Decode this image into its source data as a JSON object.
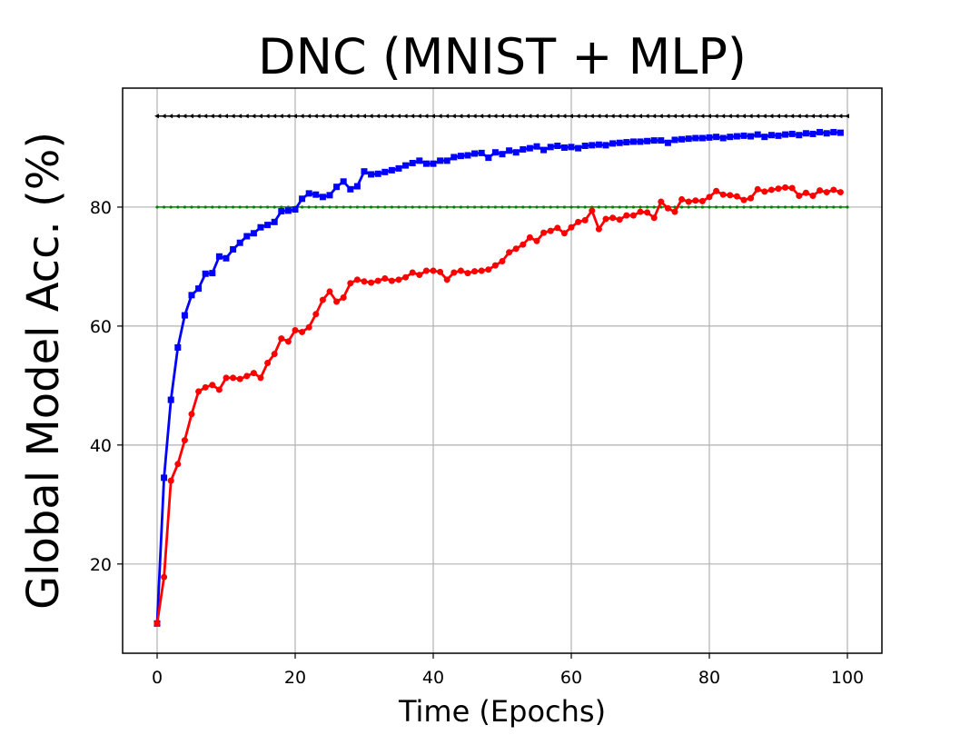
{
  "chart_data": {
    "type": "line",
    "title": "DNC (MNIST + MLP)",
    "xlabel": "Time (Epochs)",
    "ylabel": "Global Model Acc. (%)",
    "xlim": [
      -5,
      105
    ],
    "ylim": [
      5,
      100
    ],
    "xticks": [
      0,
      20,
      40,
      60,
      80,
      100
    ],
    "yticks": [
      20,
      40,
      60,
      80
    ],
    "grid": true,
    "legend": "none",
    "series": [
      {
        "color": "#000000",
        "marker": "triangle-left",
        "x": [
          0,
          100
        ],
        "values": [
          95.3,
          95.3
        ]
      },
      {
        "color": "#008000",
        "marker": "small-dot",
        "x": [
          0,
          100
        ],
        "values": [
          80,
          80
        ]
      },
      {
        "color": "#0000ff",
        "marker": "square",
        "x": [
          0,
          1,
          2,
          3,
          4,
          5,
          6,
          7,
          8,
          9,
          10,
          11,
          12,
          13,
          14,
          15,
          16,
          17,
          18,
          19,
          20,
          21,
          22,
          23,
          24,
          25,
          26,
          27,
          28,
          29,
          30,
          31,
          32,
          33,
          34,
          35,
          36,
          37,
          38,
          39,
          40,
          41,
          42,
          43,
          44,
          45,
          46,
          47,
          48,
          49,
          50,
          51,
          52,
          53,
          54,
          55,
          56,
          57,
          58,
          59,
          60,
          61,
          62,
          63,
          64,
          65,
          66,
          67,
          68,
          69,
          70,
          71,
          72,
          73,
          74,
          75,
          76,
          77,
          78,
          79,
          80,
          81,
          82,
          83,
          84,
          85,
          86,
          87,
          88,
          89,
          90,
          91,
          92,
          93,
          94,
          95,
          96,
          97,
          98,
          99
        ],
        "values": [
          10,
          34.5,
          47.6,
          56.4,
          61.8,
          65.2,
          66.3,
          68.8,
          68.9,
          71.7,
          71.4,
          72.9,
          74.0,
          75.1,
          75.6,
          76.6,
          77.0,
          77.5,
          79.3,
          79.4,
          79.6,
          81.4,
          82.3,
          82.1,
          81.7,
          82.0,
          83.4,
          84.3,
          83.0,
          83.5,
          86.0,
          85.5,
          85.6,
          85.9,
          86.2,
          86.5,
          87.0,
          87.4,
          87.8,
          87.3,
          87.3,
          87.8,
          87.8,
          88.4,
          88.6,
          88.7,
          89.0,
          89.1,
          88.3,
          89.2,
          88.9,
          89.5,
          89.2,
          89.7,
          89.9,
          90.2,
          89.6,
          90.1,
          90.3,
          90.0,
          90.1,
          89.9,
          90.3,
          90.4,
          90.5,
          90.4,
          90.7,
          90.8,
          90.9,
          91.0,
          91.0,
          91.1,
          91.2,
          91.2,
          90.8,
          91.3,
          91.4,
          91.5,
          91.6,
          91.6,
          91.7,
          91.8,
          91.6,
          91.8,
          91.9,
          92.0,
          91.9,
          92.2,
          91.8,
          92.1,
          92.0,
          92.2,
          92.3,
          92.1,
          92.4,
          92.3,
          92.6,
          92.4,
          92.6,
          92.5
        ]
      },
      {
        "color": "#ff0000",
        "marker": "circle",
        "x": [
          0,
          1,
          2,
          3,
          4,
          5,
          6,
          7,
          8,
          9,
          10,
          11,
          12,
          13,
          14,
          15,
          16,
          17,
          18,
          19,
          20,
          21,
          22,
          23,
          24,
          25,
          26,
          27,
          28,
          29,
          30,
          31,
          32,
          33,
          34,
          35,
          36,
          37,
          38,
          39,
          40,
          41,
          42,
          43,
          44,
          45,
          46,
          47,
          48,
          49,
          50,
          51,
          52,
          53,
          54,
          55,
          56,
          57,
          58,
          59,
          60,
          61,
          62,
          63,
          64,
          65,
          66,
          67,
          68,
          69,
          70,
          71,
          72,
          73,
          74,
          75,
          76,
          77,
          78,
          79,
          80,
          81,
          82,
          83,
          84,
          85,
          86,
          87,
          88,
          89,
          90,
          91,
          92,
          93,
          94,
          95,
          96,
          97,
          98,
          99
        ],
        "values": [
          10,
          17.8,
          34.0,
          36.8,
          40.8,
          45.2,
          49.0,
          49.7,
          50.1,
          49.3,
          51.3,
          51.3,
          51.1,
          51.6,
          52.1,
          51.3,
          53.8,
          55.3,
          57.9,
          57.4,
          59.3,
          59.0,
          59.8,
          62.0,
          64.4,
          65.8,
          64.1,
          64.8,
          67.2,
          67.8,
          67.5,
          67.3,
          67.6,
          68.0,
          67.6,
          67.8,
          68.2,
          69.0,
          68.6,
          69.3,
          69.3,
          69.1,
          67.8,
          69.0,
          69.3,
          68.9,
          69.2,
          69.3,
          69.5,
          70.2,
          70.9,
          72.4,
          73.0,
          73.7,
          74.9,
          74.3,
          75.7,
          76.0,
          76.5,
          75.6,
          76.6,
          77.5,
          77.8,
          79.4,
          76.3,
          78.0,
          78.2,
          77.9,
          78.6,
          78.6,
          79.2,
          79.1,
          78.2,
          80.9,
          79.8,
          79.2,
          81.3,
          80.9,
          81.1,
          81.0,
          81.7,
          82.7,
          82.1,
          82.0,
          81.8,
          81.2,
          81.5,
          83.0,
          82.6,
          82.9,
          83.1,
          83.3,
          83.2,
          81.9,
          82.4,
          81.9,
          82.8,
          82.5,
          82.9,
          82.5
        ]
      }
    ]
  }
}
